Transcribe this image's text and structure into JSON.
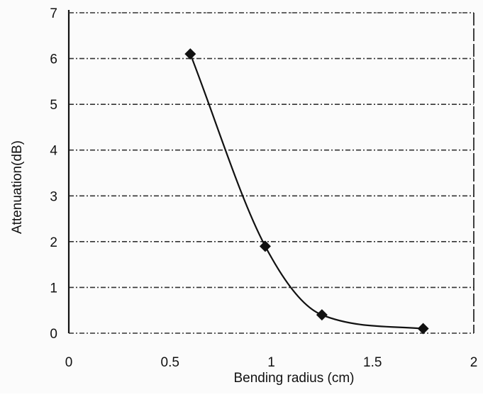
{
  "chart_data": {
    "type": "line",
    "title": "",
    "xlabel": "Bending radius (cm)",
    "ylabel": "Attenuation(dB)",
    "xlim": [
      0,
      2
    ],
    "ylim": [
      0,
      7
    ],
    "x_ticks": [
      0,
      0.5,
      1,
      1.5,
      2
    ],
    "x_tick_labels": [
      "0",
      "0.5",
      "1",
      "1.5",
      "2"
    ],
    "y_ticks": [
      0,
      1,
      2,
      3,
      4,
      5,
      6,
      7
    ],
    "y_tick_labels": [
      "0",
      "1",
      "2",
      "3",
      "4",
      "5",
      "6",
      "7"
    ],
    "grid": {
      "horizontal": true,
      "vertical": false,
      "style": "dashed"
    },
    "legend": "none",
    "series": [
      {
        "marker": "diamond",
        "line": "smoothed",
        "points": [
          {
            "x": 0.6,
            "y": 6.1
          },
          {
            "x": 0.97,
            "y": 1.9
          },
          {
            "x": 1.25,
            "y": 0.4
          },
          {
            "x": 1.75,
            "y": 0.1
          }
        ]
      }
    ],
    "colors": {
      "line": "#111111",
      "marker": "#111111",
      "grid": "#333333"
    }
  }
}
